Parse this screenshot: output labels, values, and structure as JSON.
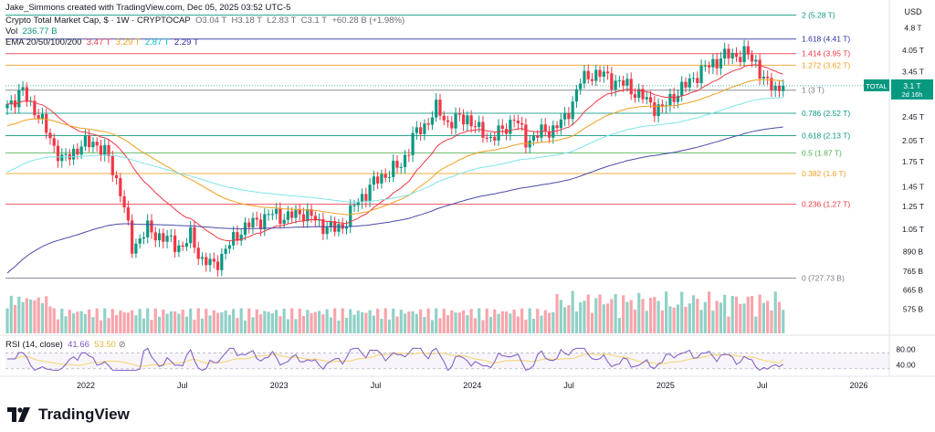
{
  "header": {
    "credit": "Jake_Simmons created with TradingView.com, Dec 05, 2025 03:52 UTC-5",
    "symbol_line": {
      "name": "Crypto Total Market Cap, $ · 1W · CRYPTOCAP",
      "o_label": "O",
      "o_val": "3.04 T",
      "h_label": "H",
      "h_val": "3.18 T",
      "l_label": "L",
      "l_val": "2.83 T",
      "c_label": "C",
      "c_val": "3.1 T",
      "change": "+60.28 B (+1.98%)"
    },
    "vol_label": "Vol",
    "vol_val": "236.77 B",
    "ema_label": "EMA 20/50/100/200",
    "ema_vals": [
      "3.47 T",
      "3.29 T",
      "2.87 T",
      "2.29 T"
    ],
    "rsi_label": "RSI (14, close)",
    "rsi_val": "41.66",
    "rsi_ma": "53.50"
  },
  "price_axis": {
    "unit": "USD",
    "ticks": [
      "4.8 T",
      "4.05 T",
      "3.45 T",
      "2.45 T",
      "2.05 T",
      "1.75 T",
      "1.45 T",
      "1.25 T",
      "1.05 T",
      "890 B",
      "765 B",
      "665 B",
      "575 B"
    ],
    "tick_values": [
      4.8,
      4.05,
      3.45,
      2.45,
      2.05,
      1.75,
      1.45,
      1.25,
      1.05,
      0.89,
      0.765,
      0.665,
      0.575
    ],
    "last_price_badge": {
      "label": "TOTAL",
      "value": "3.1 T",
      "countdown": "2d 16h"
    }
  },
  "rsi_axis": {
    "ticks": [
      "80.00",
      "40.00"
    ],
    "tick_values": [
      80,
      40
    ]
  },
  "time_axis": {
    "ticks": [
      "2022",
      "Jul",
      "2023",
      "Jul",
      "2024",
      "Jul",
      "2025",
      "Jul",
      "2026",
      "Ju"
    ],
    "tick_weeks": [
      0,
      26,
      52,
      78,
      104,
      130,
      156,
      182,
      208,
      234
    ]
  },
  "fib_levels": [
    {
      "label": "2 (5.28 T)",
      "value": 5.28,
      "color": "#089981"
    },
    {
      "label": "1.618 (4.41 T)",
      "value": 4.41,
      "color": "#2a2e9e"
    },
    {
      "label": "1.414 (3.95 T)",
      "value": 3.95,
      "color": "#f23645"
    },
    {
      "label": "1.272 (3.62 T)",
      "value": 3.62,
      "color": "#f0a020"
    },
    {
      "label": "1 (3 T)",
      "value": 3.0,
      "color": "#787b86"
    },
    {
      "label": "0.786 (2.52 T)",
      "value": 2.52,
      "color": "#089981"
    },
    {
      "label": "0.618 (2.13 T)",
      "value": 2.13,
      "color": "#089981"
    },
    {
      "label": "0.5 (1.87 T)",
      "value": 1.87,
      "color": "#4caf50"
    },
    {
      "label": "0.382 (1.6 T)",
      "value": 1.6,
      "color": "#f0a020"
    },
    {
      "label": "0.236 (1.27 T)",
      "value": 1.27,
      "color": "#f23645"
    },
    {
      "label": "0 (727.73 B)",
      "value": 0.7277,
      "color": "#787b86"
    }
  ],
  "colors": {
    "up": "#089981",
    "down": "#f23645",
    "ema20": "#f23645",
    "ema50": "#f0a020",
    "ema100": "#7fe3e8",
    "ema200": "#4a4aa8",
    "rsi": "#7e57c2",
    "rsi_ma": "#f5d36a"
  },
  "chart_data": {
    "type": "candlestick",
    "title": "Crypto Total Market Cap, $ · 1W · CRYPTOCAP",
    "unit": "USD",
    "scale": "log",
    "interval": "1W",
    "x_start": "2021-10",
    "x_end": "2025-12",
    "ylim": [
      0.57,
      5.6
    ],
    "close_anchors_T": [
      [
        0,
        2.7
      ],
      [
        4,
        2.95
      ],
      [
        7,
        2.6
      ],
      [
        11,
        2.1
      ],
      [
        14,
        1.75
      ],
      [
        17,
        1.9
      ],
      [
        22,
        2.05
      ],
      [
        26,
        1.8
      ],
      [
        29,
        1.4
      ],
      [
        32,
        0.92
      ],
      [
        36,
        1.05
      ],
      [
        41,
        0.97
      ],
      [
        45,
        0.92
      ],
      [
        47,
        1.0
      ],
      [
        50,
        0.83
      ],
      [
        53,
        0.8
      ],
      [
        56,
        0.9
      ],
      [
        60,
        1.05
      ],
      [
        64,
        1.12
      ],
      [
        68,
        1.18
      ],
      [
        72,
        1.15
      ],
      [
        76,
        1.2
      ],
      [
        80,
        1.1
      ],
      [
        84,
        1.05
      ],
      [
        86,
        1.08
      ],
      [
        89,
        1.25
      ],
      [
        93,
        1.45
      ],
      [
        97,
        1.6
      ],
      [
        101,
        1.7
      ],
      [
        104,
        2.1
      ],
      [
        107,
        2.3
      ],
      [
        110,
        2.6
      ],
      [
        113,
        2.35
      ],
      [
        118,
        2.45
      ],
      [
        121,
        2.2
      ],
      [
        124,
        2.1
      ],
      [
        127,
        2.2
      ],
      [
        130,
        2.45
      ],
      [
        133,
        2.05
      ],
      [
        136,
        2.15
      ],
      [
        140,
        2.25
      ],
      [
        143,
        2.4
      ],
      [
        147,
        3.2
      ],
      [
        150,
        3.4
      ],
      [
        153,
        3.35
      ],
      [
        156,
        3.2
      ],
      [
        159,
        3.1
      ],
      [
        162,
        2.9
      ],
      [
        165,
        2.7
      ],
      [
        168,
        2.6
      ],
      [
        171,
        2.9
      ],
      [
        174,
        3.1
      ],
      [
        177,
        3.4
      ],
      [
        180,
        3.6
      ],
      [
        183,
        3.85
      ],
      [
        186,
        3.9
      ],
      [
        189,
        3.95
      ],
      [
        192,
        3.7
      ],
      [
        195,
        3.1
      ],
      [
        198,
        3.05
      ],
      [
        199,
        3.1
      ]
    ],
    "volume_B": {
      "range": [
        0,
        1200
      ],
      "shape": "stylized"
    },
    "ema": [
      {
        "name": "EMA 20",
        "last": 3.47
      },
      {
        "name": "EMA 50",
        "last": 3.29
      },
      {
        "name": "EMA 100",
        "last": 2.87
      },
      {
        "name": "EMA 200",
        "last": 2.29
      }
    ],
    "rsi": {
      "period": 14,
      "last": 41.66,
      "ma_last": 53.5,
      "bands": [
        30,
        70
      ]
    }
  }
}
